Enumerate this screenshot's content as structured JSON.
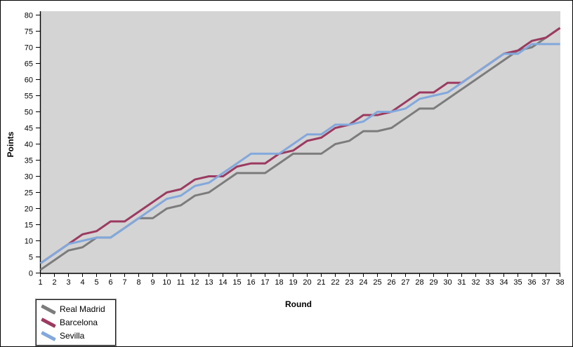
{
  "chart_data": {
    "type": "line",
    "title": "",
    "xlabel": "Round",
    "ylabel": "Points",
    "x": [
      1,
      2,
      3,
      4,
      5,
      6,
      7,
      8,
      9,
      10,
      11,
      12,
      13,
      14,
      15,
      16,
      17,
      18,
      19,
      20,
      21,
      22,
      23,
      24,
      25,
      26,
      27,
      28,
      29,
      30,
      31,
      32,
      33,
      34,
      35,
      36,
      37,
      38
    ],
    "y_ticks": [
      0,
      5,
      10,
      15,
      20,
      25,
      30,
      35,
      40,
      45,
      50,
      55,
      60,
      65,
      70,
      75,
      80
    ],
    "ylim": [
      0,
      80
    ],
    "grid": false,
    "legend_position": "bottom-left",
    "plot_background": "#d4d4d4",
    "series": [
      {
        "name": "Real Madrid",
        "color": "#7c7c7c",
        "values": [
          1,
          4,
          7,
          8,
          11,
          11,
          14,
          17,
          17,
          20,
          21,
          24,
          25,
          28,
          31,
          31,
          31,
          34,
          37,
          37,
          37,
          40,
          41,
          44,
          44,
          45,
          48,
          51,
          51,
          54,
          57,
          60,
          63,
          66,
          69,
          70,
          73,
          76
        ]
      },
      {
        "name": "Barcelona",
        "color": "#9c3a60",
        "values": [
          3,
          6,
          9,
          12,
          13,
          16,
          16,
          19,
          22,
          25,
          26,
          29,
          30,
          30,
          33,
          34,
          34,
          37,
          38,
          41,
          42,
          45,
          46,
          49,
          49,
          50,
          53,
          56,
          56,
          59,
          59,
          62,
          65,
          68,
          69,
          72,
          73,
          76
        ]
      },
      {
        "name": "Sevilla",
        "color": "#82a8dc",
        "values": [
          3,
          6,
          9,
          10,
          11,
          11,
          14,
          17,
          20,
          23,
          24,
          27,
          28,
          31,
          34,
          37,
          37,
          37,
          40,
          43,
          43,
          46,
          46,
          47,
          50,
          50,
          51,
          54,
          55,
          56,
          59,
          62,
          65,
          68,
          68,
          71,
          71,
          71
        ]
      }
    ]
  },
  "axes": {
    "x_title": "Round",
    "y_title": "Points"
  },
  "legend": {
    "items": [
      {
        "label": "Real Madrid",
        "color": "#7c7c7c"
      },
      {
        "label": "Barcelona",
        "color": "#9c3a60"
      },
      {
        "label": "Sevilla",
        "color": "#82a8dc"
      }
    ]
  }
}
